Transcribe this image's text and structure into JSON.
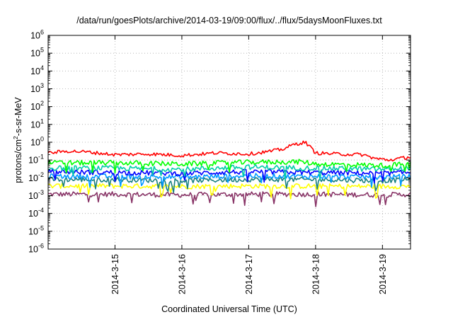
{
  "chart_data": {
    "type": "line",
    "title": "/data/run/goesPlots/archive/2014-03-19/09:00/flux/../flux/5daysMoonFluxes.txt",
    "xlabel": "Coordinated Universal Time (UTC)",
    "ylabel": {
      "prefix": "protons/cm",
      "sup": "2",
      "suffix": "-s-sr-MeV"
    },
    "x_ticks": [
      "2014-3-15",
      "2014-3-16",
      "2014-3-17",
      "2014-3-18",
      "2014-3-19"
    ],
    "x_tick_days": [
      1,
      2,
      3,
      4,
      5
    ],
    "xlim_days": [
      0.0,
      5.42
    ],
    "y_scale": "log",
    "ylim": [
      1e-06,
      1000000.0
    ],
    "y_tick_exponents": [
      -6,
      -5,
      -4,
      -3,
      -2,
      -1,
      0,
      1,
      2,
      3,
      4,
      5,
      6
    ],
    "grid": true,
    "legend": "none",
    "series": [
      {
        "color": "#ff0000",
        "values_at_day": [
          [
            0.0,
            0.25
          ],
          [
            0.3,
            0.32
          ],
          [
            0.6,
            0.28
          ],
          [
            1.0,
            0.2
          ],
          [
            1.5,
            0.22
          ],
          [
            2.0,
            0.18
          ],
          [
            2.5,
            0.25
          ],
          [
            3.0,
            0.22
          ],
          [
            3.3,
            0.3
          ],
          [
            3.5,
            0.4
          ],
          [
            3.7,
            0.8
          ],
          [
            3.85,
            1.0
          ],
          [
            4.0,
            0.25
          ],
          [
            4.3,
            0.22
          ],
          [
            4.7,
            0.2
          ],
          [
            4.9,
            0.12
          ],
          [
            5.1,
            0.1
          ],
          [
            5.42,
            0.15
          ]
        ]
      },
      {
        "color": "#00ff00",
        "values_at_day": [
          [
            0.0,
            0.07
          ],
          [
            1.0,
            0.07
          ],
          [
            2.0,
            0.06
          ],
          [
            3.0,
            0.075
          ],
          [
            3.8,
            0.08
          ],
          [
            4.0,
            0.06
          ],
          [
            5.0,
            0.05
          ],
          [
            5.42,
            0.06
          ]
        ]
      },
      {
        "color": "#00ccaa",
        "values_at_day": [
          [
            0.0,
            0.035
          ],
          [
            1.0,
            0.035
          ],
          [
            2.0,
            0.03
          ],
          [
            3.0,
            0.04
          ],
          [
            4.0,
            0.035
          ],
          [
            5.0,
            0.03
          ],
          [
            5.42,
            0.035
          ]
        ]
      },
      {
        "color": "#0000ff",
        "values_at_day": [
          [
            0.0,
            0.022
          ],
          [
            1.0,
            0.02
          ],
          [
            2.0,
            0.018
          ],
          [
            3.0,
            0.022
          ],
          [
            4.0,
            0.02
          ],
          [
            5.0,
            0.018
          ],
          [
            5.42,
            0.02
          ]
        ]
      },
      {
        "color": "#0099ff",
        "values_at_day": [
          [
            0.0,
            0.012
          ],
          [
            1.0,
            0.012
          ],
          [
            2.0,
            0.011
          ],
          [
            3.0,
            0.013
          ],
          [
            4.0,
            0.012
          ],
          [
            5.0,
            0.011
          ],
          [
            5.42,
            0.012
          ]
        ]
      },
      {
        "color": "#1a8080",
        "values_at_day": [
          [
            0.0,
            0.008
          ],
          [
            1.0,
            0.008
          ],
          [
            2.0,
            0.007
          ],
          [
            3.0,
            0.008
          ],
          [
            4.0,
            0.008
          ],
          [
            5.0,
            0.007
          ],
          [
            5.42,
            0.008
          ]
        ]
      },
      {
        "color": "#ffff00",
        "values_at_day": [
          [
            0.0,
            0.0035
          ],
          [
            1.0,
            0.0035
          ],
          [
            2.0,
            0.0033
          ],
          [
            3.0,
            0.0035
          ],
          [
            4.0,
            0.0034
          ],
          [
            5.0,
            0.0033
          ],
          [
            5.42,
            0.0034
          ]
        ]
      },
      {
        "color": "#883366",
        "values_at_day": [
          [
            0.0,
            0.0012
          ],
          [
            1.0,
            0.0012
          ],
          [
            2.0,
            0.0011
          ],
          [
            3.0,
            0.0012
          ],
          [
            4.0,
            0.0012
          ],
          [
            5.0,
            0.0011
          ],
          [
            5.42,
            0.0012
          ]
        ]
      }
    ]
  }
}
